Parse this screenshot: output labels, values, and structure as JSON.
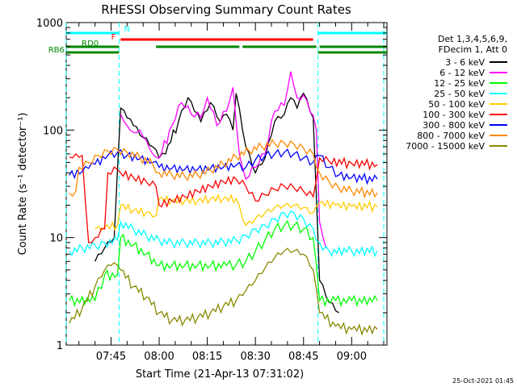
{
  "chart_data": {
    "type": "line",
    "title": "RHESSI Observing Summary Count Rates",
    "xlabel": "Start Time (21-Apr-13 07:31:02)",
    "ylabel": "Count Rate (s⁻¹ detector⁻¹)",
    "yscale": "log",
    "ylim": [
      1,
      1000
    ],
    "xlim": [
      "07:31:02",
      "09:11:00"
    ],
    "x_ticks": [
      "07:45",
      "08:00",
      "08:15",
      "08:30",
      "08:45",
      "09:00"
    ],
    "y_ticks": [
      "1",
      "10",
      "100",
      "1000"
    ],
    "grid": false,
    "legend_placement": "right",
    "legend_header": [
      "Det 1,3,4,5,6,9,",
      "FDecim 1, Att 0"
    ],
    "footer": "25-Oct-2021 01:45",
    "flags": {
      "N": {
        "label": "N",
        "color": "#00ffff"
      },
      "F": {
        "label": "F",
        "color": "#ff0000"
      },
      "RD0": {
        "label": "RD0",
        "color": "#008800"
      },
      "RB6": {
        "label": "RB6",
        "color": "#008800"
      }
    },
    "eclipse_times": [
      "07:31:00",
      "07:47:30",
      "08:49:30",
      "09:10:00"
    ],
    "series": [
      {
        "name": "3 - 6 keV",
        "color": "#000000",
        "points": [
          [
            "07:40",
            6
          ],
          [
            "07:43",
            8
          ],
          [
            "07:46",
            10
          ],
          [
            "07:48",
            160
          ],
          [
            "07:50",
            130
          ],
          [
            "07:52",
            110
          ],
          [
            "07:55",
            85
          ],
          [
            "07:58",
            70
          ],
          [
            "08:00",
            55
          ],
          [
            "08:02",
            60
          ],
          [
            "08:06",
            120
          ],
          [
            "08:09",
            200
          ],
          [
            "08:11",
            150
          ],
          [
            "08:13",
            120
          ],
          [
            "08:16",
            180
          ],
          [
            "08:19",
            120
          ],
          [
            "08:21",
            140
          ],
          [
            "08:23",
            100
          ],
          [
            "08:24",
            220
          ],
          [
            "08:27",
            70
          ],
          [
            "08:30",
            40
          ],
          [
            "08:33",
            55
          ],
          [
            "08:36",
            120
          ],
          [
            "08:39",
            140
          ],
          [
            "08:41",
            200
          ],
          [
            "08:43",
            160
          ],
          [
            "08:45",
            220
          ],
          [
            "08:48",
            130
          ],
          [
            "08:50",
            4
          ],
          [
            "08:53",
            2.5
          ],
          [
            "08:56",
            2
          ]
        ]
      },
      {
        "name": "6 - 12 keV",
        "color": "#ff00ff",
        "points": [
          [
            "07:48",
            140
          ],
          [
            "07:50",
            110
          ],
          [
            "07:52",
            95
          ],
          [
            "07:54",
            100
          ],
          [
            "07:56",
            80
          ],
          [
            "07:58",
            60
          ],
          [
            "08:00",
            55
          ],
          [
            "08:04",
            110
          ],
          [
            "08:07",
            180
          ],
          [
            "08:10",
            140
          ],
          [
            "08:13",
            130
          ],
          [
            "08:15",
            200
          ],
          [
            "08:18",
            110
          ],
          [
            "08:21",
            150
          ],
          [
            "08:23",
            250
          ],
          [
            "08:25",
            60
          ],
          [
            "08:27",
            35
          ],
          [
            "08:30",
            45
          ],
          [
            "08:33",
            60
          ],
          [
            "08:36",
            150
          ],
          [
            "08:39",
            170
          ],
          [
            "08:41",
            350
          ],
          [
            "08:43",
            200
          ],
          [
            "08:46",
            190
          ],
          [
            "08:49",
            100
          ],
          [
            "08:50",
            14
          ],
          [
            "08:52",
            8
          ]
        ]
      },
      {
        "name": "12 - 25 keV",
        "color": "#00ff00",
        "points": [
          [
            "07:32",
            2.6
          ],
          [
            "07:40",
            2.6
          ],
          [
            "07:43",
            4.5
          ],
          [
            "07:47",
            4.5
          ],
          [
            "07:48",
            10
          ],
          [
            "07:52",
            8.5
          ],
          [
            "07:56",
            7
          ],
          [
            "08:00",
            5.5
          ],
          [
            "08:04",
            5.5
          ],
          [
            "08:08",
            5.5
          ],
          [
            "08:12",
            5.5
          ],
          [
            "08:16",
            5.5
          ],
          [
            "08:21",
            5.5
          ],
          [
            "08:24",
            5.6
          ],
          [
            "08:27",
            6
          ],
          [
            "08:30",
            7.5
          ],
          [
            "08:33",
            9.5
          ],
          [
            "08:36",
            12
          ],
          [
            "08:39",
            13
          ],
          [
            "08:42",
            13
          ],
          [
            "08:45",
            12
          ],
          [
            "08:48",
            10
          ],
          [
            "08:50",
            2.6
          ],
          [
            "08:55",
            2.6
          ],
          [
            "09:00",
            2.6
          ],
          [
            "09:08",
            2.6
          ]
        ]
      },
      {
        "name": "25 - 50 keV",
        "color": "#00ffff",
        "points": [
          [
            "07:32",
            7.5
          ],
          [
            "07:36",
            8
          ],
          [
            "07:40",
            8.5
          ],
          [
            "07:43",
            9
          ],
          [
            "07:47",
            9.5
          ],
          [
            "07:48",
            14
          ],
          [
            "07:52",
            12
          ],
          [
            "07:56",
            10.5
          ],
          [
            "08:00",
            9.5
          ],
          [
            "08:04",
            9
          ],
          [
            "08:08",
            9
          ],
          [
            "08:12",
            9
          ],
          [
            "08:16",
            9
          ],
          [
            "08:20",
            9.2
          ],
          [
            "08:24",
            9.5
          ],
          [
            "08:27",
            10.5
          ],
          [
            "08:30",
            12
          ],
          [
            "08:33",
            13
          ],
          [
            "08:36",
            15
          ],
          [
            "08:39",
            17
          ],
          [
            "08:42",
            17
          ],
          [
            "08:45",
            15
          ],
          [
            "08:48",
            12
          ],
          [
            "08:50",
            9
          ],
          [
            "08:53",
            7.5
          ],
          [
            "09:00",
            7.5
          ],
          [
            "09:08",
            7.5
          ]
        ]
      },
      {
        "name": "50 - 100 keV",
        "color": "#ffcc00",
        "points": [
          [
            "07:40",
            12
          ],
          [
            "07:43",
            12.5
          ],
          [
            "07:47",
            13
          ],
          [
            "07:48",
            20
          ],
          [
            "07:52",
            18
          ],
          [
            "07:56",
            17
          ],
          [
            "07:59",
            16
          ],
          [
            "08:00",
            23
          ],
          [
            "08:04",
            22
          ],
          [
            "08:08",
            22
          ],
          [
            "08:12",
            22
          ],
          [
            "08:16",
            23
          ],
          [
            "08:20",
            23
          ],
          [
            "08:24",
            23
          ],
          [
            "08:27",
            13
          ],
          [
            "08:30",
            15
          ],
          [
            "08:33",
            17
          ],
          [
            "08:36",
            19
          ],
          [
            "08:39",
            20
          ],
          [
            "08:42",
            20
          ],
          [
            "08:45",
            19
          ],
          [
            "08:48",
            17
          ],
          [
            "08:50",
            21
          ],
          [
            "08:55",
            20
          ],
          [
            "09:00",
            19.5
          ],
          [
            "09:08",
            19.5
          ]
        ]
      },
      {
        "name": "100 - 300 keV",
        "color": "#ff0000",
        "points": [
          [
            "07:32",
            56
          ],
          [
            "07:34",
            60
          ],
          [
            "07:36",
            58
          ],
          [
            "07:38",
            9
          ],
          [
            "07:40",
            10
          ],
          [
            "07:43",
            12
          ],
          [
            "07:44",
            40
          ],
          [
            "07:47",
            43
          ],
          [
            "07:48",
            40
          ],
          [
            "07:52",
            36
          ],
          [
            "07:56",
            33
          ],
          [
            "07:59",
            30
          ],
          [
            "08:00",
            20
          ],
          [
            "08:04",
            22
          ],
          [
            "08:08",
            24
          ],
          [
            "08:12",
            27
          ],
          [
            "08:16",
            30
          ],
          [
            "08:20",
            33
          ],
          [
            "08:24",
            35
          ],
          [
            "08:27",
            30
          ],
          [
            "08:30",
            22
          ],
          [
            "08:33",
            25
          ],
          [
            "08:36",
            28
          ],
          [
            "08:39",
            30
          ],
          [
            "08:42",
            29
          ],
          [
            "08:45",
            27
          ],
          [
            "08:48",
            24
          ],
          [
            "08:50",
            55
          ],
          [
            "08:53",
            51
          ],
          [
            "09:00",
            49
          ],
          [
            "09:08",
            48
          ]
        ]
      },
      {
        "name": "300 - 800 keV",
        "color": "#0000ff",
        "points": [
          [
            "07:32",
            38
          ],
          [
            "07:36",
            41
          ],
          [
            "07:38",
            44
          ],
          [
            "07:40",
            48
          ],
          [
            "07:44",
            58
          ],
          [
            "07:47",
            62
          ],
          [
            "07:50",
            58
          ],
          [
            "07:54",
            54
          ],
          [
            "07:58",
            50
          ],
          [
            "08:00",
            45
          ],
          [
            "08:04",
            44
          ],
          [
            "08:08",
            43
          ],
          [
            "08:12",
            43
          ],
          [
            "08:16",
            44
          ],
          [
            "08:20",
            45
          ],
          [
            "08:24",
            47
          ],
          [
            "08:27",
            45
          ],
          [
            "08:30",
            53
          ],
          [
            "08:33",
            58
          ],
          [
            "08:36",
            60
          ],
          [
            "08:39",
            62
          ],
          [
            "08:42",
            60
          ],
          [
            "08:45",
            55
          ],
          [
            "08:48",
            50
          ],
          [
            "08:50",
            58
          ],
          [
            "08:53",
            45
          ],
          [
            "08:56",
            38
          ],
          [
            "09:00",
            36
          ],
          [
            "09:08",
            35
          ]
        ]
      },
      {
        "name": "800 - 7000 keV",
        "color": "#ff8800",
        "points": [
          [
            "07:32",
            26
          ],
          [
            "07:34",
            27
          ],
          [
            "07:35",
            45
          ],
          [
            "07:38",
            50
          ],
          [
            "07:41",
            58
          ],
          [
            "07:44",
            64
          ],
          [
            "07:47",
            66
          ],
          [
            "07:50",
            62
          ],
          [
            "07:54",
            55
          ],
          [
            "07:58",
            48
          ],
          [
            "08:00",
            40
          ],
          [
            "08:04",
            38
          ],
          [
            "08:08",
            37
          ],
          [
            "08:12",
            38
          ],
          [
            "08:16",
            42
          ],
          [
            "08:20",
            48
          ],
          [
            "08:24",
            56
          ],
          [
            "08:28",
            64
          ],
          [
            "08:32",
            70
          ],
          [
            "08:36",
            75
          ],
          [
            "08:39",
            76
          ],
          [
            "08:42",
            74
          ],
          [
            "08:45",
            68
          ],
          [
            "08:48",
            60
          ],
          [
            "08:50",
            40
          ],
          [
            "08:53",
            33
          ],
          [
            "08:56",
            29
          ],
          [
            "09:00",
            27
          ],
          [
            "09:08",
            26
          ]
        ]
      },
      {
        "name": "7000 - 15000 keV",
        "color": "#888800",
        "points": [
          [
            "07:32",
            1.6
          ],
          [
            "07:36",
            2.2
          ],
          [
            "07:40",
            3.5
          ],
          [
            "07:43",
            5
          ],
          [
            "07:45",
            5.5
          ],
          [
            "07:47",
            5.5
          ],
          [
            "07:48",
            5
          ],
          [
            "07:52",
            3.5
          ],
          [
            "07:56",
            2.8
          ],
          [
            "08:00",
            2
          ],
          [
            "08:04",
            1.7
          ],
          [
            "08:08",
            1.7
          ],
          [
            "08:12",
            1.8
          ],
          [
            "08:16",
            2
          ],
          [
            "08:20",
            2.3
          ],
          [
            "08:24",
            2.6
          ],
          [
            "08:27",
            3.2
          ],
          [
            "08:30",
            4
          ],
          [
            "08:33",
            5.2
          ],
          [
            "08:36",
            6.5
          ],
          [
            "08:39",
            7.5
          ],
          [
            "08:42",
            7.5
          ],
          [
            "08:45",
            7
          ],
          [
            "08:48",
            5
          ],
          [
            "08:50",
            2
          ],
          [
            "08:55",
            1.5
          ],
          [
            "09:00",
            1.4
          ],
          [
            "09:08",
            1.4
          ]
        ]
      }
    ]
  }
}
